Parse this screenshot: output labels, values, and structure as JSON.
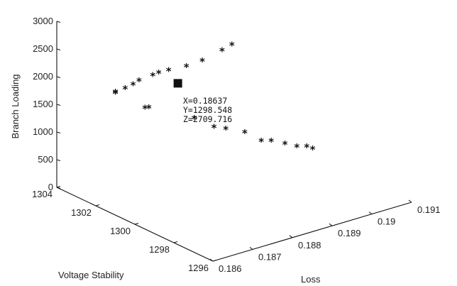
{
  "chart_data": {
    "type": "scatter",
    "marker": "asterisk",
    "xlabel": "Loss",
    "ylabel": "Voltage Stability",
    "zlabel": "Branch Loading",
    "xlim": [
      0.186,
      0.191
    ],
    "ylim": [
      1296,
      1304
    ],
    "zlim": [
      0,
      3000
    ],
    "x_ticks": [
      "0.186",
      "0.187",
      "0.188",
      "0.189",
      "0.19",
      "0.191"
    ],
    "y_ticks": [
      "1296",
      "1298",
      "1300",
      "1302",
      "1304"
    ],
    "z_ticks": [
      "0",
      "500",
      "1000",
      "1500",
      "2000",
      "2500",
      "3000"
    ],
    "points": [
      {
        "x": 0.1881,
        "y": 1299.3,
        "z": 2920
      },
      {
        "x": 0.1879,
        "y": 1299.4,
        "z": 2840
      },
      {
        "x": 0.1875,
        "y": 1299.6,
        "z": 2710
      },
      {
        "x": 0.1872,
        "y": 1299.8,
        "z": 2640
      },
      {
        "x": 0.1869,
        "y": 1300.1,
        "z": 2580
      },
      {
        "x": 0.1867,
        "y": 1300.2,
        "z": 2560
      },
      {
        "x": 0.1866,
        "y": 1300.3,
        "z": 2520
      },
      {
        "x": 0.1864,
        "y": 1300.6,
        "z": 2420
      },
      {
        "x": 0.1863,
        "y": 1300.7,
        "z": 2350
      },
      {
        "x": 0.1862,
        "y": 1300.9,
        "z": 2270
      },
      {
        "x": 0.1861,
        "y": 1301.2,
        "z": 2160
      },
      {
        "x": 0.1862,
        "y": 1301.4,
        "z": 2120
      },
      {
        "x": 0.1865,
        "y": 1300.5,
        "z": 1920
      },
      {
        "x": 0.1866,
        "y": 1300.5,
        "z": 1905
      },
      {
        "x": 0.1872,
        "y": 1299.4,
        "z": 1770
      },
      {
        "x": 0.1875,
        "y": 1299.0,
        "z": 1610
      },
      {
        "x": 0.1877,
        "y": 1298.8,
        "z": 1570
      },
      {
        "x": 0.18798,
        "y": 1298.4,
        "z": 1510
      },
      {
        "x": 0.1882,
        "y": 1298.0,
        "z": 1380
      },
      {
        "x": 0.1884,
        "y": 1297.9,
        "z": 1350
      },
      {
        "x": 0.1886,
        "y": 1297.6,
        "z": 1310
      },
      {
        "x": 0.1888,
        "y": 1297.4,
        "z": 1250
      },
      {
        "x": 0.189,
        "y": 1297.3,
        "z": 1220
      },
      {
        "x": 0.1891,
        "y": 1297.2,
        "z": 1180
      }
    ],
    "highlight": {
      "x": 0.18637,
      "y": 1298.548,
      "z": 2709.716
    },
    "datatip": {
      "x_text": "X=0.18637",
      "y_text": "Y=1298.548",
      "z_text": "Z=2709.716"
    }
  }
}
